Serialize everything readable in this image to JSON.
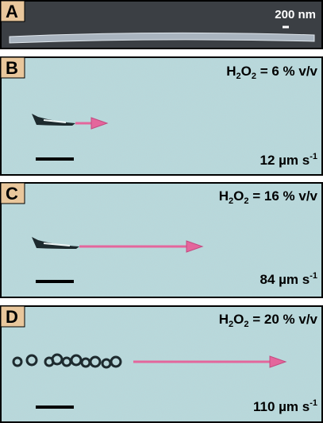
{
  "panels": [
    {
      "label": "A",
      "scale_text": "200 nm"
    },
    {
      "label": "B",
      "condition": [
        "H",
        "2",
        "O",
        "2",
        " = 6 % v/v"
      ],
      "speed": [
        "12 µm s",
        "-1"
      ]
    },
    {
      "label": "C",
      "condition": [
        "H",
        "2",
        "O",
        "2",
        " = 16 % v/v"
      ],
      "speed": [
        "84 µm s",
        "-1"
      ]
    },
    {
      "label": "D",
      "condition": [
        "H",
        "2",
        "O",
        "2",
        " = 20 % v/v"
      ],
      "speed": [
        "110 µm s",
        "-1"
      ]
    }
  ]
}
